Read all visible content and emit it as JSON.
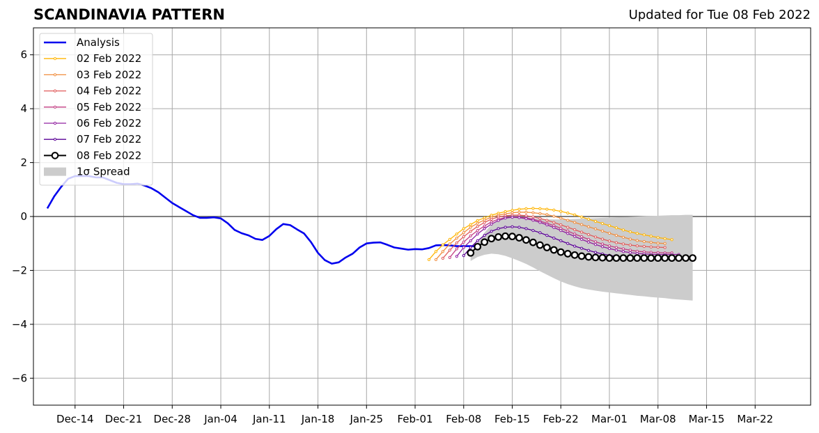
{
  "header": {
    "title": "SCANDINAVIA PATTERN",
    "subtitle": "Updated for Tue 08 Feb 2022"
  },
  "chart_data": {
    "type": "line",
    "title": "SCANDINAVIA PATTERN",
    "subtitle": "Updated for Tue 08 Feb 2022",
    "xlabel": "",
    "ylabel": "",
    "x_axis": "date",
    "xlim": [
      "2021-12-08",
      "2022-03-30"
    ],
    "ylim": [
      -7,
      7
    ],
    "yticks": [
      -6,
      -4,
      -2,
      0,
      2,
      4,
      6
    ],
    "ytick_labels": [
      "−6",
      "−4",
      "−2",
      "0",
      "2",
      "4",
      "6"
    ],
    "xticks": [
      "2021-12-14",
      "2021-12-21",
      "2021-12-28",
      "2022-01-04",
      "2022-01-11",
      "2022-01-18",
      "2022-01-25",
      "2022-02-01",
      "2022-02-08",
      "2022-02-15",
      "2022-02-22",
      "2022-03-01",
      "2022-03-08",
      "2022-03-15",
      "2022-03-22"
    ],
    "xtick_labels": [
      "Dec-14",
      "Dec-21",
      "Dec-28",
      "Jan-04",
      "Jan-11",
      "Jan-18",
      "Jan-25",
      "Feb-01",
      "Feb-08",
      "Feb-15",
      "Feb-22",
      "Mar-01",
      "Mar-08",
      "Mar-15",
      "Mar-22"
    ],
    "grid": true,
    "zero_line": true,
    "legend_position": "top-left",
    "legend": [
      "Analysis",
      "02 Feb 2022",
      "03 Feb 2022",
      "04 Feb 2022",
      "05 Feb 2022",
      "06 Feb 2022",
      "07 Feb 2022",
      "08 Feb 2022",
      "1σ Spread"
    ],
    "analysis": {
      "name": "Analysis",
      "color": "#0000ee",
      "start_date": "2021-12-10",
      "values": [
        0.3,
        0.75,
        1.1,
        1.4,
        1.5,
        1.5,
        1.5,
        1.45,
        1.45,
        1.35,
        1.25,
        1.2,
        1.2,
        1.22,
        1.15,
        1.05,
        0.9,
        0.7,
        0.5,
        0.35,
        0.2,
        0.05,
        -0.05,
        -0.05,
        -0.03,
        -0.07,
        -0.25,
        -0.5,
        -0.62,
        -0.7,
        -0.83,
        -0.87,
        -0.72,
        -0.47,
        -0.28,
        -0.32,
        -0.48,
        -0.63,
        -0.95,
        -1.35,
        -1.62,
        -1.75,
        -1.7,
        -1.52,
        -1.38,
        -1.15,
        -1.0,
        -0.97,
        -0.96,
        -1.05,
        -1.15,
        -1.19,
        -1.23,
        -1.21,
        -1.22,
        -1.17,
        -1.07,
        -1.06,
        -1.07,
        -1.1,
        -1.1,
        -1.1,
        -1.1
      ]
    },
    "forecasts": [
      {
        "name": "02 Feb 2022",
        "color": "#ffb400",
        "start_date": "2022-02-03",
        "values": [
          -1.6,
          -1.3,
          -1.05,
          -0.85,
          -0.65,
          -0.45,
          -0.3,
          -0.15,
          -0.05,
          0.05,
          0.12,
          0.18,
          0.23,
          0.27,
          0.29,
          0.3,
          0.29,
          0.27,
          0.24,
          0.19,
          0.13,
          0.06,
          -0.02,
          -0.1,
          -0.18,
          -0.26,
          -0.34,
          -0.42,
          -0.5,
          -0.57,
          -0.63,
          -0.68,
          -0.73,
          -0.78,
          -0.82,
          -0.86
        ]
      },
      {
        "name": "03 Feb 2022",
        "color": "#f08c3c",
        "start_date": "2022-02-04",
        "values": [
          -1.6,
          -1.3,
          -1.02,
          -0.8,
          -0.6,
          -0.4,
          -0.25,
          -0.13,
          -0.03,
          0.05,
          0.1,
          0.14,
          0.16,
          0.16,
          0.14,
          0.11,
          0.07,
          0.01,
          -0.06,
          -0.14,
          -0.22,
          -0.3,
          -0.38,
          -0.46,
          -0.54,
          -0.62,
          -0.7,
          -0.77,
          -0.84,
          -0.89,
          -0.93,
          -0.96,
          -0.99,
          -1.0
        ]
      },
      {
        "name": "04 Feb 2022",
        "color": "#e05a5a",
        "start_date": "2022-02-05",
        "values": [
          -1.55,
          -1.25,
          -0.98,
          -0.75,
          -0.55,
          -0.37,
          -0.22,
          -0.1,
          -0.02,
          0.03,
          0.05,
          0.05,
          0.03,
          -0.01,
          -0.07,
          -0.14,
          -0.22,
          -0.31,
          -0.4,
          -0.49,
          -0.58,
          -0.67,
          -0.76,
          -0.84,
          -0.91,
          -0.97,
          -1.02,
          -1.06,
          -1.09,
          -1.11,
          -1.13,
          -1.14,
          -1.15
        ]
      },
      {
        "name": "05 Feb 2022",
        "color": "#c23c82",
        "start_date": "2022-02-06",
        "values": [
          -1.52,
          -1.2,
          -0.95,
          -0.72,
          -0.52,
          -0.35,
          -0.2,
          -0.1,
          -0.04,
          -0.02,
          -0.02,
          -0.05,
          -0.1,
          -0.17,
          -0.25,
          -0.34,
          -0.44,
          -0.54,
          -0.65,
          -0.75,
          -0.85,
          -0.94,
          -1.02,
          -1.09,
          -1.15,
          -1.2,
          -1.25,
          -1.29,
          -1.31,
          -1.33,
          -1.34,
          -1.35,
          -1.35
        ]
      },
      {
        "name": "06 Feb 2022",
        "color": "#9020a0",
        "start_date": "2022-02-07",
        "values": [
          -1.48,
          -1.15,
          -0.9,
          -0.65,
          -0.45,
          -0.28,
          -0.15,
          -0.06,
          -0.03,
          -0.04,
          -0.08,
          -0.14,
          -0.22,
          -0.31,
          -0.41,
          -0.52,
          -0.63,
          -0.74,
          -0.85,
          -0.95,
          -1.04,
          -1.12,
          -1.19,
          -1.25,
          -1.3,
          -1.34,
          -1.37,
          -1.39,
          -1.4,
          -1.41,
          -1.41,
          -1.41,
          -1.41
        ]
      },
      {
        "name": "07 Feb 2022",
        "color": "#5a0096",
        "start_date": "2022-02-08",
        "values": [
          -1.45,
          -1.15,
          -0.9,
          -0.7,
          -0.55,
          -0.45,
          -0.4,
          -0.38,
          -0.4,
          -0.45,
          -0.52,
          -0.6,
          -0.7,
          -0.8,
          -0.9,
          -1.0,
          -1.1,
          -1.18,
          -1.26,
          -1.33,
          -1.39,
          -1.44,
          -1.48,
          -1.51,
          -1.53,
          -1.54,
          -1.55,
          -1.55,
          -1.55,
          -1.55,
          -1.55,
          -1.55,
          -1.55
        ]
      },
      {
        "name": "08 Feb 2022",
        "color": "#000000",
        "start_date": "2022-02-09",
        "values": [
          -1.35,
          -1.12,
          -0.95,
          -0.82,
          -0.76,
          -0.73,
          -0.74,
          -0.79,
          -0.87,
          -0.96,
          -1.06,
          -1.15,
          -1.24,
          -1.32,
          -1.38,
          -1.43,
          -1.47,
          -1.5,
          -1.52,
          -1.53,
          -1.54,
          -1.54,
          -1.54,
          -1.54,
          -1.54,
          -1.54,
          -1.54,
          -1.54,
          -1.54,
          -1.54,
          -1.54,
          -1.54,
          -1.54
        ]
      }
    ],
    "spread": {
      "name": "1σ Spread",
      "color": "#cccccc",
      "start_date": "2022-02-09",
      "upper": [
        -1.5,
        -1.0,
        -0.6,
        -0.3,
        -0.12,
        -0.03,
        0.0,
        0.0,
        -0.03,
        -0.06,
        -0.08,
        -0.1,
        -0.11,
        -0.11,
        -0.1,
        -0.09,
        -0.08,
        -0.07,
        -0.06,
        -0.05,
        -0.04,
        -0.03,
        -0.02,
        -0.01,
        0.0,
        0.01,
        0.02,
        0.03,
        0.04,
        0.05,
        0.05,
        0.06,
        0.06
      ],
      "lower": [
        -1.65,
        -1.5,
        -1.42,
        -1.38,
        -1.4,
        -1.46,
        -1.55,
        -1.65,
        -1.76,
        -1.89,
        -2.03,
        -2.16,
        -2.29,
        -2.41,
        -2.51,
        -2.59,
        -2.66,
        -2.71,
        -2.75,
        -2.79,
        -2.82,
        -2.85,
        -2.88,
        -2.91,
        -2.94,
        -2.96,
        -2.99,
        -3.01,
        -3.03,
        -3.06,
        -3.08,
        -3.1,
        -3.12
      ]
    }
  }
}
